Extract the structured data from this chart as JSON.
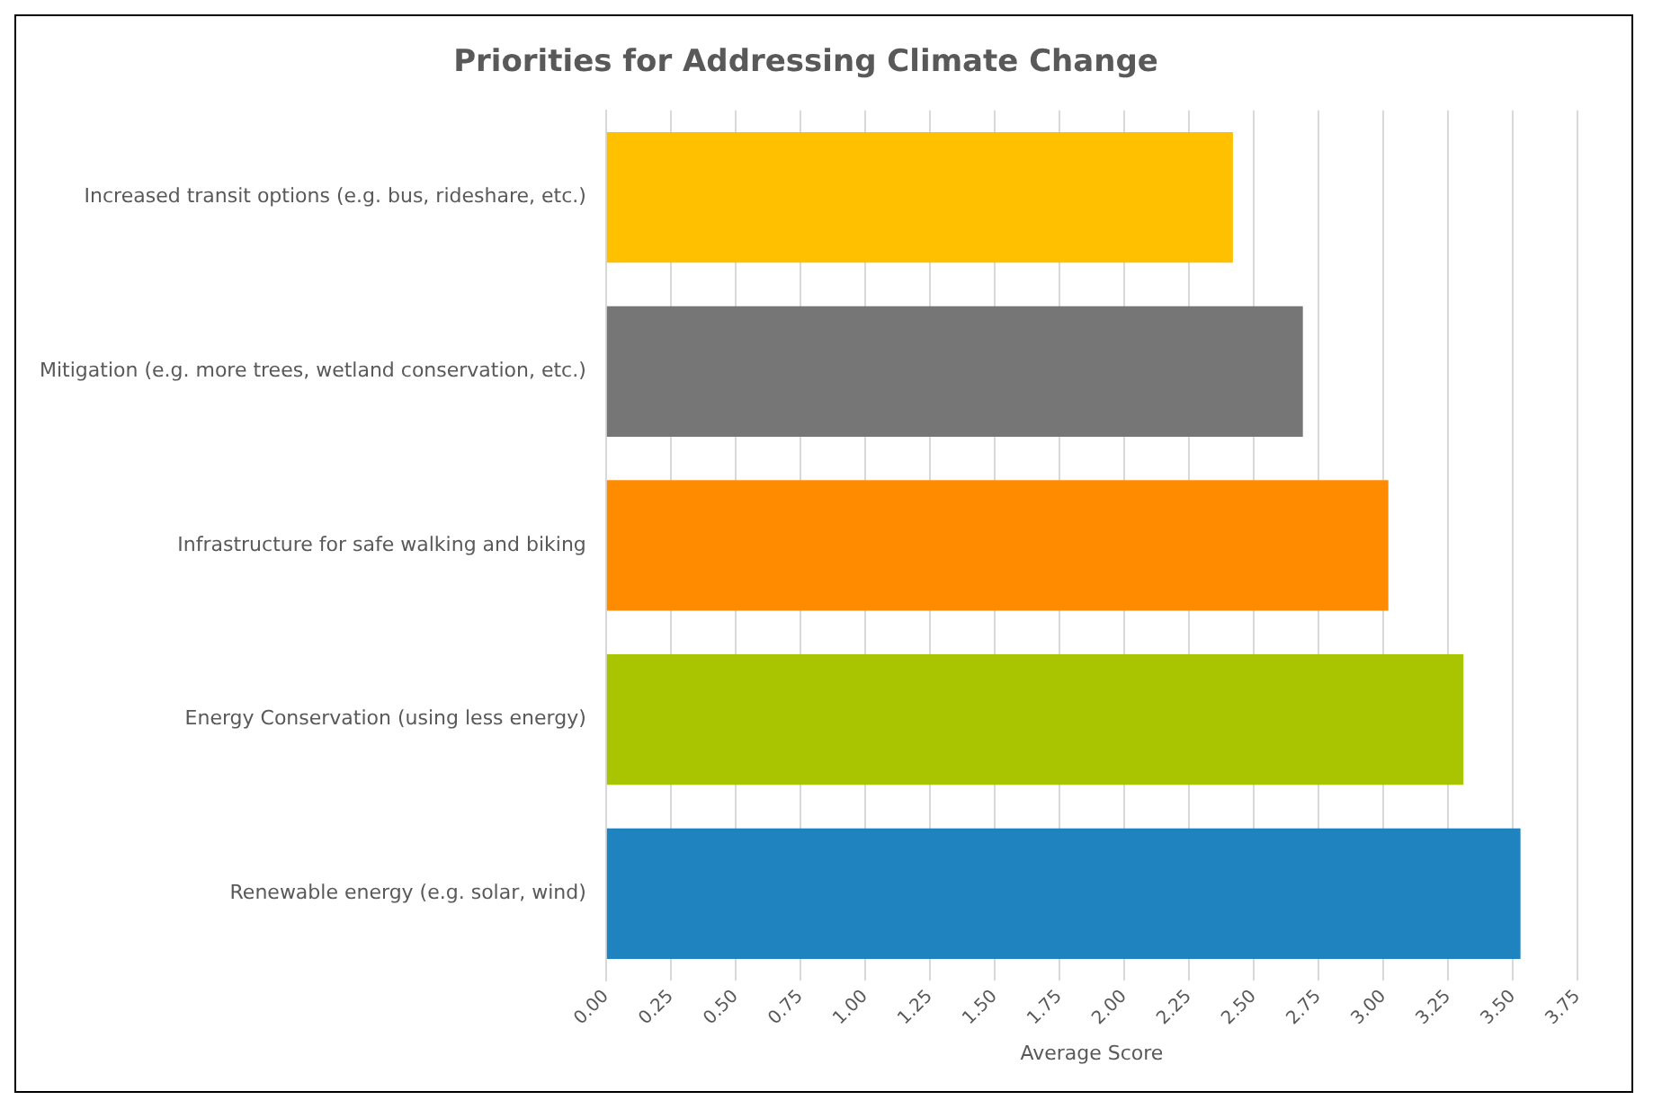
{
  "chart_data": {
    "type": "bar",
    "orientation": "horizontal",
    "title": "Priorities for Addressing Climate Change",
    "xlabel": "Average Score",
    "categories": [
      "Increased transit options (e.g. bus, rideshare, etc.)",
      "Mitigation (e.g. more trees, wetland conservation, etc.)",
      "Infrastructure for safe walking and biking",
      "Energy Conservation (using less energy)",
      "Renewable energy (e.g. solar, wind)"
    ],
    "values": [
      2.42,
      2.69,
      3.02,
      3.31,
      3.53
    ],
    "colors": [
      "#ffc000",
      "#767676",
      "#ff8c00",
      "#a9c400",
      "#1f83c0"
    ],
    "xlim": [
      0,
      3.75
    ],
    "xticks": [
      {
        "value": 0,
        "label": "0.00"
      },
      {
        "value": 0.25,
        "label": "0.25"
      },
      {
        "value": 0.5,
        "label": "0.50"
      },
      {
        "value": 0.75,
        "label": "0.75"
      },
      {
        "value": 1,
        "label": "1.00"
      },
      {
        "value": 1.25,
        "label": "1.25"
      },
      {
        "value": 1.5,
        "label": "1.50"
      },
      {
        "value": 1.75,
        "label": "1.75"
      },
      {
        "value": 2,
        "label": "2.00"
      },
      {
        "value": 2.25,
        "label": "2.25"
      },
      {
        "value": 2.5,
        "label": "2.50"
      },
      {
        "value": 2.75,
        "label": "2.75"
      },
      {
        "value": 3,
        "label": "3.00"
      },
      {
        "value": 3.25,
        "label": "3.25"
      },
      {
        "value": 3.5,
        "label": "3.50"
      },
      {
        "value": 3.75,
        "label": "3.75"
      }
    ],
    "grid": "x"
  }
}
